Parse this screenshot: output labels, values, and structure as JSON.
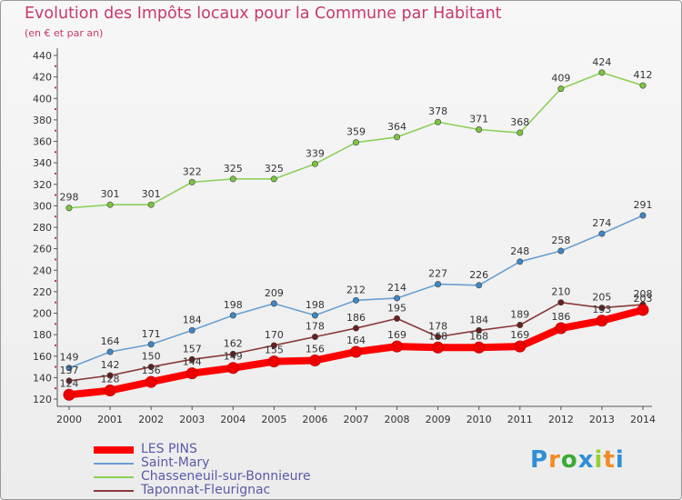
{
  "header": {
    "title": "Evolution des Impôts locaux pour la Commune par Habitant",
    "subtitle": "(en € et par an)"
  },
  "colors": {
    "title": "#c8386f",
    "axis_text": "#333333",
    "legend_text": "#5a5aa8"
  },
  "chart_data": {
    "type": "line",
    "x": [
      "2000",
      "2001",
      "2002",
      "2003",
      "2004",
      "2005",
      "2006",
      "2007",
      "2008",
      "2009",
      "2010",
      "2011",
      "2012",
      "2013",
      "2014"
    ],
    "yticks": [
      120,
      140,
      160,
      180,
      200,
      220,
      240,
      260,
      280,
      300,
      320,
      340,
      360,
      380,
      400,
      420,
      440
    ],
    "ylim": [
      120,
      440
    ],
    "grid": false,
    "legend_position": "bottom-left",
    "series": [
      {
        "name": "Chasseneuil-sur-Bonnieure",
        "color": "#8cd05a",
        "marker": "#7cc440",
        "values": [
          298,
          301,
          301,
          322,
          325,
          325,
          339,
          359,
          364,
          378,
          371,
          368,
          409,
          424,
          412
        ],
        "labels": [
          "298",
          "301",
          "301",
          "322",
          "325",
          "325",
          "339",
          "359",
          "364",
          "378",
          "371",
          "368",
          "409",
          "424",
          "412"
        ]
      },
      {
        "name": "Saint-Mary",
        "color": "#6a9fd0",
        "marker": "#3e86c8",
        "values": [
          149,
          164,
          171,
          184,
          198,
          209,
          198,
          212,
          214,
          227,
          226,
          248,
          258,
          274,
          291
        ],
        "labels": [
          "149",
          "164",
          "171",
          "184",
          "198",
          "209",
          "198",
          "212",
          "214",
          "227",
          "226",
          "248",
          "258",
          "274",
          "291"
        ]
      },
      {
        "name": "Taponnat-Fleurignac",
        "color": "#8a3838",
        "marker": "#6b1e1e",
        "values": [
          137,
          142,
          150,
          157,
          162,
          170,
          178,
          186,
          195,
          178,
          184,
          189,
          210,
          205,
          208
        ],
        "labels": [
          "137",
          "142",
          "150",
          "157",
          "162",
          "170",
          "178",
          "186",
          "195",
          "178",
          "184",
          "189",
          "210",
          "205",
          "208"
        ]
      },
      {
        "name": "LES PINS",
        "color": "#ff0000",
        "marker": "#ee0000",
        "values": [
          124,
          128,
          136,
          144,
          149,
          155,
          156,
          164,
          169,
          168,
          168,
          169,
          186,
          193,
          203
        ],
        "labels": [
          "124",
          "128",
          "136",
          "144",
          "149",
          "155",
          "156",
          "164",
          "169",
          "168",
          "168",
          "169",
          "186",
          "193",
          "203"
        ]
      }
    ]
  },
  "legend": {
    "items": [
      {
        "label": "LES PINS",
        "color": "#ff0000",
        "thickness": 8
      },
      {
        "label": "Saint-Mary",
        "color": "#6a9fd0",
        "thickness": 2
      },
      {
        "label": "Chasseneuil-sur-Bonnieure",
        "color": "#8cd05a",
        "thickness": 2
      },
      {
        "label": "Taponnat-Fleurignac",
        "color": "#8a3838",
        "thickness": 2
      }
    ]
  },
  "logo": {
    "letters": [
      "P",
      "r",
      "o",
      "x",
      "i",
      "t",
      "i"
    ],
    "colors": [
      "#2e8fd6",
      "#f28c28",
      "#3aaa35",
      "#2e8fd6",
      "#9acd32",
      "#f28c28",
      "#2e8fd6"
    ]
  }
}
